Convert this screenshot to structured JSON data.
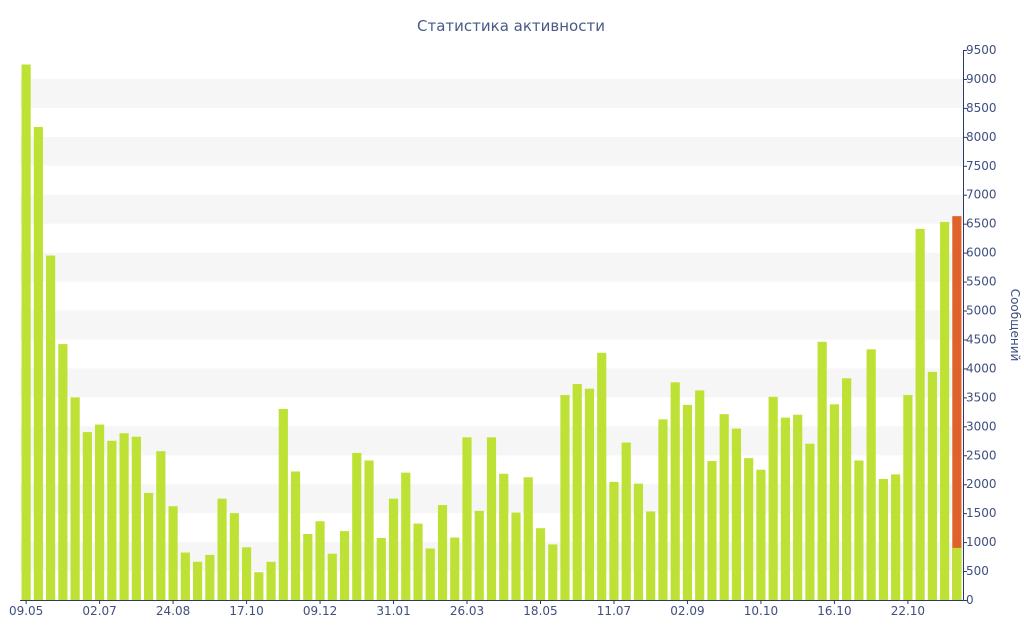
{
  "chart_data": {
    "type": "bar",
    "title": "Статистика активности",
    "ylabel": "Сообщений",
    "xlabel": "",
    "ylim": [
      0,
      9500
    ],
    "yticks": [
      0,
      500,
      1000,
      1500,
      2000,
      2500,
      3000,
      3500,
      4000,
      4500,
      5000,
      5500,
      6000,
      6500,
      7000,
      7500,
      8000,
      8500,
      9000,
      9500
    ],
    "x_tick_labels": [
      {
        "index": 0,
        "label": "09.05"
      },
      {
        "index": 6,
        "label": "02.07"
      },
      {
        "index": 12,
        "label": "24.08"
      },
      {
        "index": 18,
        "label": "17.10"
      },
      {
        "index": 24,
        "label": "09.12"
      },
      {
        "index": 30,
        "label": "31.01"
      },
      {
        "index": 36,
        "label": "26.03"
      },
      {
        "index": 42,
        "label": "18.05"
      },
      {
        "index": 48,
        "label": "11.07"
      },
      {
        "index": 54,
        "label": "02.09"
      },
      {
        "index": 60,
        "label": "10.10"
      },
      {
        "index": 66,
        "label": "16.10"
      },
      {
        "index": 72,
        "label": "22.10"
      }
    ],
    "grid": "horizontal alternating bands",
    "bar_color": "#bde135",
    "last_bar_color": "#e0622b",
    "values": [
      9250,
      8170,
      5950,
      4420,
      3500,
      2900,
      3030,
      2750,
      2880,
      2820,
      1850,
      2570,
      1620,
      820,
      660,
      780,
      1750,
      1500,
      910,
      480,
      660,
      3300,
      2220,
      1140,
      1360,
      800,
      1190,
      2540,
      2410,
      1070,
      1750,
      2200,
      1320,
      890,
      1640,
      1080,
      2810,
      1540,
      2810,
      2180,
      1510,
      2120,
      1240,
      960,
      3540,
      3730,
      3650,
      4270,
      2040,
      2720,
      2010,
      1530,
      3120,
      3760,
      3370,
      3620,
      2400,
      3210,
      2960,
      2450,
      2250,
      3510,
      3150,
      3200,
      2700,
      4460,
      3380,
      3830,
      2410,
      4330,
      2090,
      2170,
      3540,
      6410,
      3940,
      6530
    ],
    "last_bar": {
      "total": 6630,
      "overlay": 900
    }
  }
}
